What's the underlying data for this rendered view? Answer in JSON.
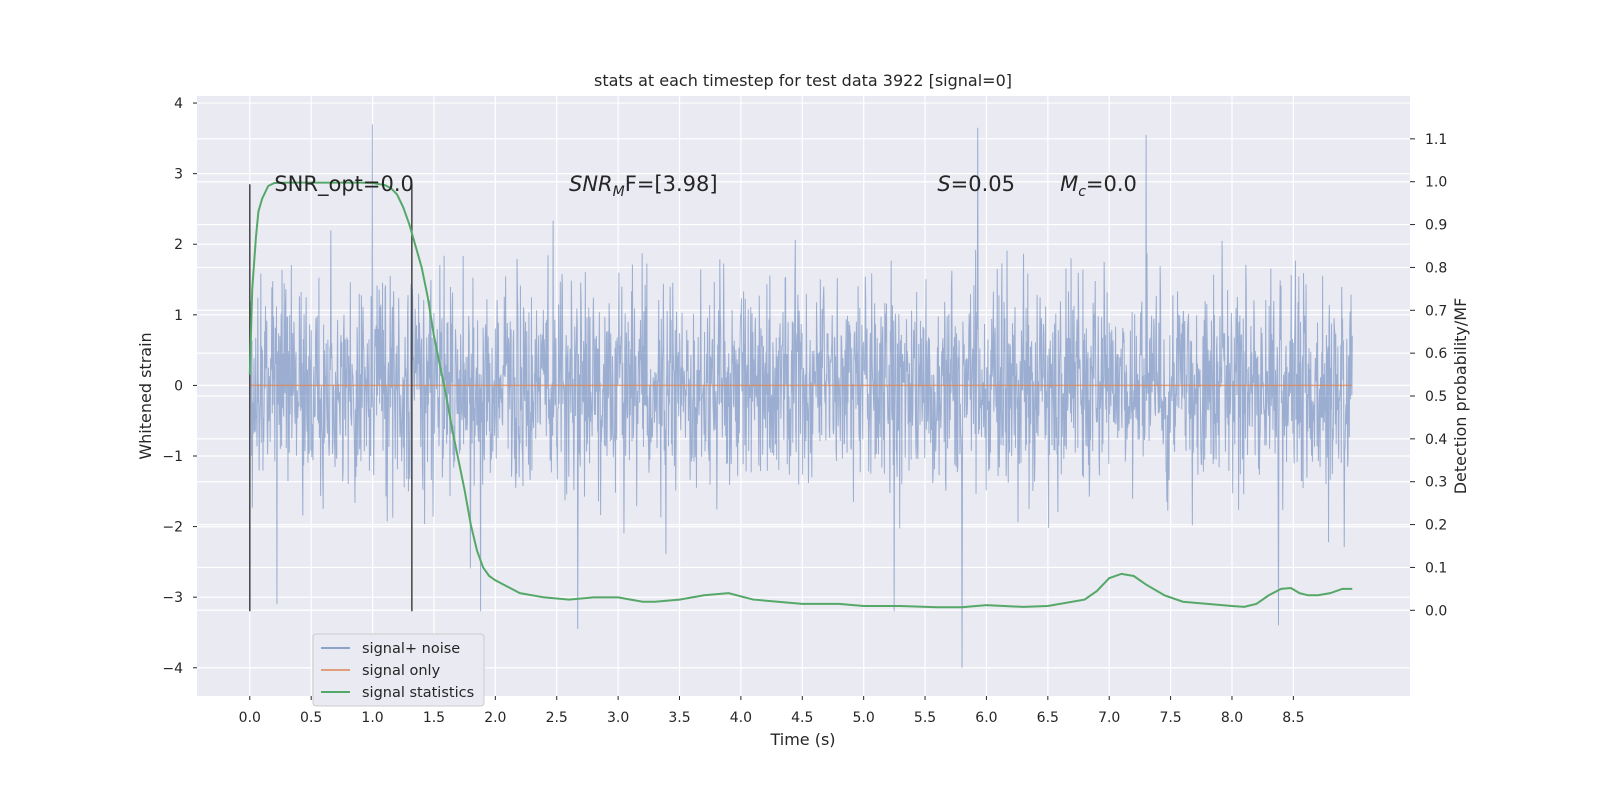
{
  "chart_data": {
    "type": "line",
    "title": "stats at each timestep for test data 3922 [signal=0]",
    "xlabel": "Time (s)",
    "ylabel": "Whitened strain",
    "y2label": "Detection probability/MF",
    "xlim": [
      -0.43,
      9.45
    ],
    "ylim": [
      -4.4,
      4.1
    ],
    "y2lim": [
      -0.2,
      1.2
    ],
    "x_ticks": [
      "0.0",
      "0.5",
      "1.0",
      "1.5",
      "2.0",
      "2.5",
      "3.0",
      "3.5",
      "4.0",
      "4.5",
      "5.0",
      "5.5",
      "6.0",
      "6.5",
      "7.0",
      "7.5",
      "8.0",
      "8.5"
    ],
    "y_ticks": [
      "4",
      "3",
      "2",
      "1",
      "0",
      "−1",
      "−2",
      "−3",
      "−4"
    ],
    "y2_ticks": [
      "0.0",
      "0.1",
      "0.2",
      "0.3",
      "0.4",
      "0.5",
      "0.6",
      "0.7",
      "0.8",
      "0.9",
      "1.0",
      "1.1"
    ],
    "grid": true,
    "legend_position": "lower-left",
    "colors": {
      "background": "#EAEAF2",
      "grid": "#FFFFFF",
      "noise": "#4C72B0",
      "signal": "#DD8452",
      "statistics": "#55A868",
      "vline": "#444444"
    },
    "series": [
      {
        "name": "signal+ noise",
        "description_range": [
          0,
          8.98
        ],
        "typical_envelope": [
          -1.5,
          1.5
        ],
        "extremes": [
          {
            "x": 1.0,
            "y": 3.7
          },
          {
            "x": 5.8,
            "y": -4.0
          },
          {
            "x": 5.93,
            "y": 3.65
          },
          {
            "x": 7.3,
            "y": 3.55
          },
          {
            "x": 2.67,
            "y": -3.45
          },
          {
            "x": 8.38,
            "y": -3.4
          },
          {
            "x": 1.88,
            "y": -3.2
          },
          {
            "x": 0.22,
            "y": -3.1
          },
          {
            "x": 5.25,
            "y": -3.2
          }
        ]
      },
      {
        "name": "signal only",
        "x": [
          0.0,
          8.98
        ],
        "y": [
          0.0,
          0.0
        ]
      },
      {
        "name": "signal statistics",
        "x": [
          0.0,
          0.02,
          0.05,
          0.07,
          0.1,
          0.15,
          0.2,
          0.3,
          0.5,
          0.7,
          0.9,
          1.0,
          1.1,
          1.15,
          1.2,
          1.25,
          1.3,
          1.35,
          1.4,
          1.45,
          1.5,
          1.55,
          1.6,
          1.65,
          1.7,
          1.75,
          1.8,
          1.85,
          1.9,
          1.95,
          2.0,
          2.1,
          2.2,
          2.4,
          2.6,
          2.8,
          3.0,
          3.2,
          3.3,
          3.5,
          3.7,
          3.9,
          4.1,
          4.3,
          4.5,
          4.8,
          5.0,
          5.3,
          5.6,
          5.8,
          6.0,
          6.3,
          6.5,
          6.8,
          6.9,
          7.0,
          7.1,
          7.2,
          7.3,
          7.45,
          7.6,
          7.8,
          8.0,
          8.1,
          8.2,
          8.3,
          8.4,
          8.48,
          8.55,
          8.62,
          8.7,
          8.8,
          8.9,
          8.98
        ],
        "y": [
          0.55,
          0.75,
          0.87,
          0.93,
          0.96,
          0.99,
          0.997,
          0.998,
          0.998,
          0.998,
          0.998,
          0.997,
          0.992,
          0.985,
          0.97,
          0.94,
          0.9,
          0.85,
          0.8,
          0.73,
          0.64,
          0.57,
          0.5,
          0.42,
          0.35,
          0.28,
          0.2,
          0.14,
          0.1,
          0.08,
          0.07,
          0.055,
          0.04,
          0.03,
          0.025,
          0.03,
          0.03,
          0.02,
          0.02,
          0.025,
          0.035,
          0.04,
          0.025,
          0.02,
          0.015,
          0.015,
          0.01,
          0.01,
          0.007,
          0.007,
          0.012,
          0.008,
          0.01,
          0.025,
          0.045,
          0.075,
          0.085,
          0.08,
          0.06,
          0.035,
          0.02,
          0.015,
          0.01,
          0.008,
          0.015,
          0.035,
          0.05,
          0.052,
          0.04,
          0.035,
          0.035,
          0.04,
          0.05,
          0.05
        ]
      }
    ],
    "vlines": [
      {
        "x": 0.0,
        "ymin": -3.2,
        "ymax": 2.85
      },
      {
        "x": 1.32,
        "ymin": -3.2,
        "ymax": 2.85
      }
    ],
    "annotations": [
      {
        "x": 0.2,
        "y": 2.85,
        "text": "SNR_opt=0.0",
        "kind": "plain"
      },
      {
        "x": 2.6,
        "y": 2.85,
        "main": "SNR",
        "sub": "M",
        "rest": "F=[3.98]",
        "kind": "math"
      },
      {
        "x": 5.6,
        "y": 2.85,
        "main": "S",
        "sub": "",
        "rest": "=0.05",
        "kind": "math"
      },
      {
        "x": 6.6,
        "y": 2.85,
        "main": "M",
        "sub": "c",
        "rest": "=0.0",
        "kind": "math"
      }
    ]
  }
}
